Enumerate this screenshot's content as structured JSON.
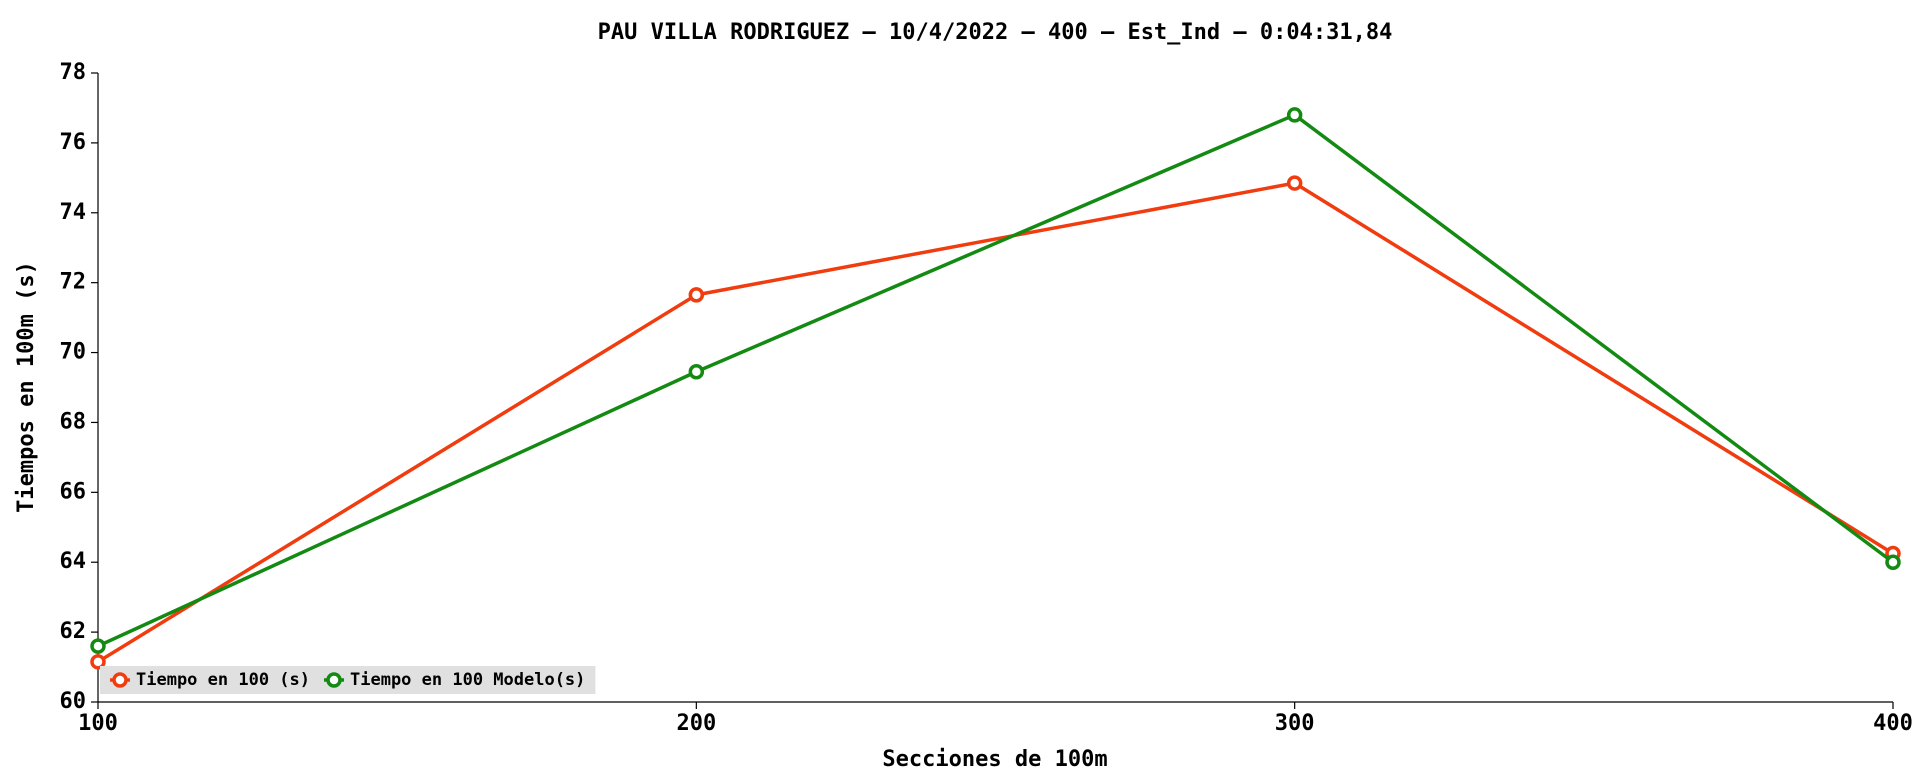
{
  "chart_data": {
    "type": "line",
    "title": "PAU VILLA RODRIGUEZ – 10/4/2022 – 400 – Est_Ind – 0:04:31,84",
    "x_label": "Secciones de 100m",
    "y_label": "Tiempos en 100m (s)",
    "x": [
      100,
      200,
      300,
      400
    ],
    "series": [
      {
        "name": "Tiempo en 100 (s)",
        "color": "#f03c0f",
        "values": [
          61.15,
          71.65,
          74.85,
          64.25
        ]
      },
      {
        "name": "Tiempo en 100 Modelo(s)",
        "color": "#138a12",
        "values": [
          61.6,
          69.45,
          76.8,
          64.0
        ]
      }
    ],
    "xlim": [
      100,
      400
    ],
    "xticks": [
      100,
      200,
      300,
      400
    ],
    "ylim": [
      60,
      78
    ],
    "yticks": [
      60,
      62,
      64,
      66,
      68,
      70,
      72,
      74,
      76,
      78
    ],
    "grid": false,
    "legend": "lower left"
  }
}
